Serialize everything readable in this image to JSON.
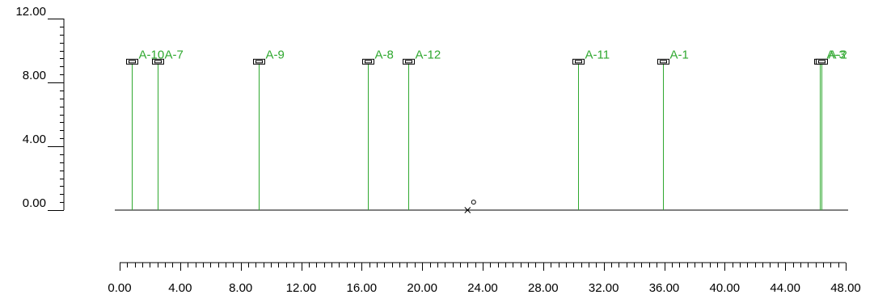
{
  "chart_data": {
    "type": "scatter",
    "title": "",
    "xlabel": "",
    "ylabel": "",
    "xlim": [
      0,
      48
    ],
    "ylim": [
      0,
      12
    ],
    "x_ticks": [
      {
        "value": 0,
        "label": "0.00"
      },
      {
        "value": 4,
        "label": "4.00"
      },
      {
        "value": 8,
        "label": "8.00"
      },
      {
        "value": 12,
        "label": "12.00"
      },
      {
        "value": 16,
        "label": "16.00"
      },
      {
        "value": 20,
        "label": "20.00"
      },
      {
        "value": 24,
        "label": "24.00"
      },
      {
        "value": 28,
        "label": "28.00"
      },
      {
        "value": 32,
        "label": "32.00"
      },
      {
        "value": 36,
        "label": "36.00"
      },
      {
        "value": 40,
        "label": "40.00"
      },
      {
        "value": 44,
        "label": "44.00"
      },
      {
        "value": 48,
        "label": "48.00"
      }
    ],
    "y_ticks": [
      {
        "value": 0,
        "label": "0.00"
      },
      {
        "value": 4,
        "label": "4.00"
      },
      {
        "value": 8,
        "label": "8.00"
      },
      {
        "value": 12,
        "label": "12.00"
      }
    ],
    "poles": [
      {
        "label": "A-10",
        "x": 0.8,
        "height": 10.0
      },
      {
        "label": "A-7",
        "x": 2.5,
        "height": 10.0
      },
      {
        "label": "A-9",
        "x": 9.2,
        "height": 10.0
      },
      {
        "label": "A-8",
        "x": 16.4,
        "height": 10.0
      },
      {
        "label": "A-12",
        "x": 19.1,
        "height": 10.0
      },
      {
        "label": "A-11",
        "x": 30.3,
        "height": 10.0
      },
      {
        "label": "A-1",
        "x": 35.9,
        "height": 10.0
      },
      {
        "label": "A-3",
        "x": 46.3,
        "height": 10.0
      },
      {
        "label": "A-2",
        "x": 46.4,
        "height": 10.0
      }
    ],
    "markers": [
      {
        "symbol": "x",
        "x": 23.0,
        "y": 0.0
      },
      {
        "symbol": "o",
        "x": 23.4,
        "y": 0.5
      }
    ],
    "colors": {
      "pole": "#2fa82f",
      "label": "#2fa82f",
      "axis": "#000000",
      "fixture": "#000000"
    }
  }
}
